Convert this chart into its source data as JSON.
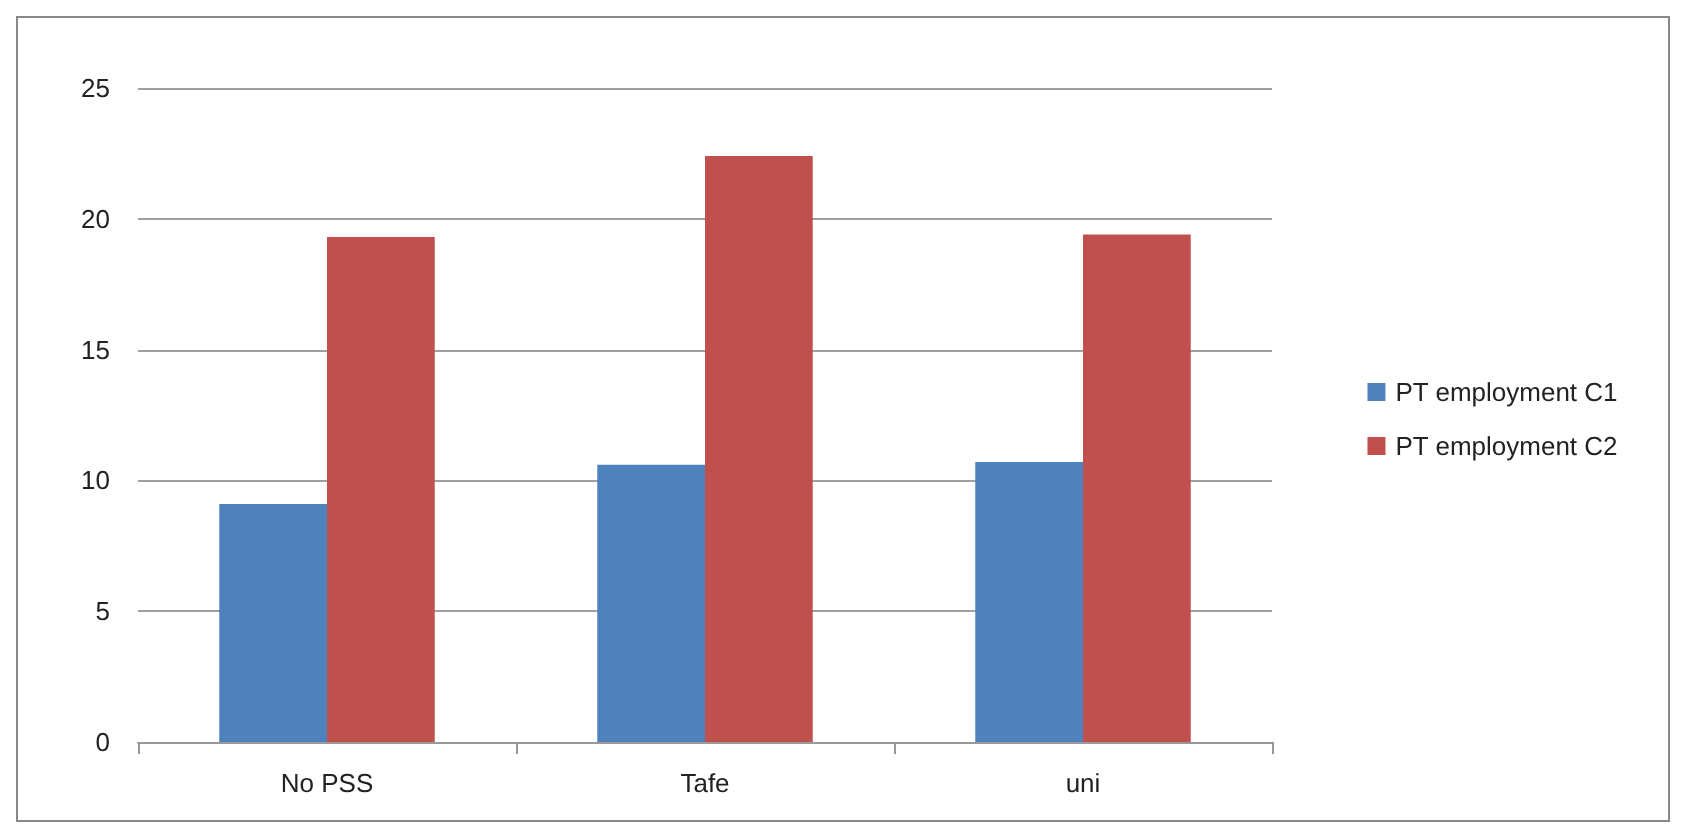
{
  "chart_data": {
    "type": "bar",
    "categories": [
      "No PSS",
      "Tafe",
      "uni"
    ],
    "series": [
      {
        "name": "PT employment C1",
        "color": "#4f81bd",
        "values": [
          9.1,
          10.6,
          10.7
        ]
      },
      {
        "name": "PT employment C2",
        "color": "#c0504d",
        "values": [
          19.3,
          22.4,
          19.4
        ]
      }
    ],
    "ylim": [
      0,
      25
    ],
    "yticks": [
      0,
      5,
      10,
      15,
      20,
      25
    ],
    "grid": "y",
    "legend": "right"
  }
}
